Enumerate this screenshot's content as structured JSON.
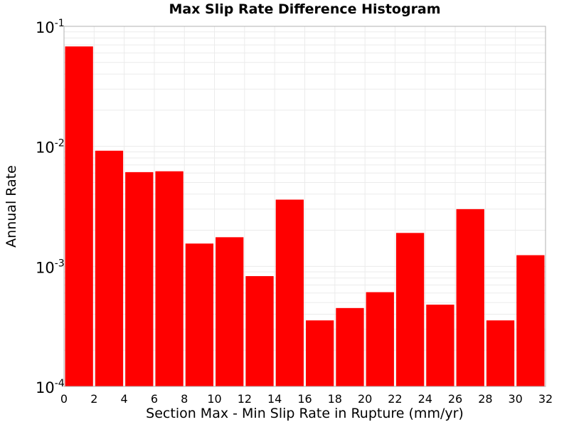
{
  "chart_data": {
    "type": "bar",
    "title": "Max Slip Rate Difference Histogram",
    "xlabel": "Section Max - Min Slip Rate in Rupture (mm/yr)",
    "ylabel": "Annual Rate",
    "x_bin_starts": [
      0,
      2,
      4,
      6,
      8,
      10,
      12,
      14,
      16,
      18,
      20,
      22,
      24,
      26,
      28,
      30
    ],
    "bin_width": 2,
    "values": [
      0.068,
      0.0092,
      0.0061,
      0.0062,
      0.00155,
      0.00175,
      0.00083,
      0.0036,
      0.000355,
      0.00045,
      0.00061,
      0.0019,
      0.00048,
      0.003,
      0.000355,
      0.00124
    ],
    "xlim": [
      0,
      32
    ],
    "ylim": [
      0.0001,
      0.1
    ],
    "y_scale": "log",
    "x_ticks": [
      "0",
      "2",
      "4",
      "6",
      "8",
      "10",
      "12",
      "14",
      "16",
      "18",
      "20",
      "22",
      "24",
      "26",
      "28",
      "30",
      "32"
    ],
    "y_ticks": [
      {
        "value": 0.1,
        "base": "10",
        "exp": "-1"
      },
      {
        "value": 0.01,
        "base": "10",
        "exp": "-2"
      },
      {
        "value": 0.001,
        "base": "10",
        "exp": "-3"
      },
      {
        "value": 0.0001,
        "base": "10",
        "exp": "-4"
      }
    ],
    "bar_color": "#ff0000",
    "grid": true
  }
}
